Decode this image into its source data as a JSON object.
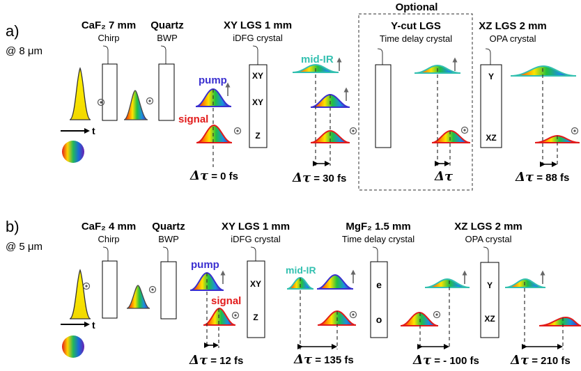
{
  "colors": {
    "pump": "#3a2fd0",
    "signal": "#e21b1b",
    "mid_ir": "#33c0b0",
    "seed_pulse": "#f2e600",
    "dashed_box": "#555555"
  },
  "panel_a": {
    "letter": "a)",
    "wavelength": "@ 8 μm",
    "optional_label": "Optional",
    "time_axis_label": "t",
    "elements": [
      {
        "title": "CaF₂ 7 mm",
        "subtitle": "Chirp"
      },
      {
        "title": "Quartz",
        "subtitle": "BWP"
      },
      {
        "title": "XY LGS 1 mm",
        "subtitle": "iDFG crystal"
      },
      {
        "title": "Y-cut LGS",
        "subtitle": "Time delay crystal"
      },
      {
        "title": "XZ LGS 2 mm",
        "subtitle": "OPA crystal"
      }
    ],
    "crystal_labels": {
      "idfg": [
        "XY",
        "XY",
        "Z"
      ],
      "opa": [
        "Y",
        "XZ"
      ]
    },
    "pulse_labels": {
      "pump": "pump",
      "signal": "signal",
      "mid_ir": "mid-IR"
    },
    "delays": {
      "d1": {
        "symbol": "Δτ",
        "text": " = 0 fs"
      },
      "d2": {
        "symbol": "Δτ",
        "text": " = 30 fs"
      },
      "d3": {
        "symbol": "Δτ",
        "text": ""
      },
      "d4": {
        "symbol": "Δτ",
        "text": " = 88 fs"
      }
    }
  },
  "panel_b": {
    "letter": "b)",
    "wavelength": "@ 5 μm",
    "time_axis_label": "t",
    "elements": [
      {
        "title": "CaF₂ 4 mm",
        "subtitle": "Chirp"
      },
      {
        "title": "Quartz",
        "subtitle": "BWP"
      },
      {
        "title": "XY LGS 1 mm",
        "subtitle": "iDFG crystal"
      },
      {
        "title": "MgF₂ 1.5 mm",
        "subtitle": "Time delay crystal"
      },
      {
        "title": "XZ LGS 2 mm",
        "subtitle": "OPA crystal"
      }
    ],
    "crystal_labels": {
      "idfg": [
        "XY",
        "Z"
      ],
      "delay": [
        "e",
        "o"
      ],
      "opa": [
        "Y",
        "XZ"
      ]
    },
    "pulse_labels": {
      "pump": "pump",
      "signal": "signal",
      "mid_ir": "mid-IR"
    },
    "delays": {
      "d1": {
        "symbol": "Δτ",
        "text": " = 12 fs"
      },
      "d2": {
        "symbol": "Δτ",
        "text": " = 135 fs"
      },
      "d3": {
        "symbol": "Δτ",
        "text": " = - 100 fs"
      },
      "d4": {
        "symbol": "Δτ",
        "text": " = 210 fs"
      }
    }
  }
}
